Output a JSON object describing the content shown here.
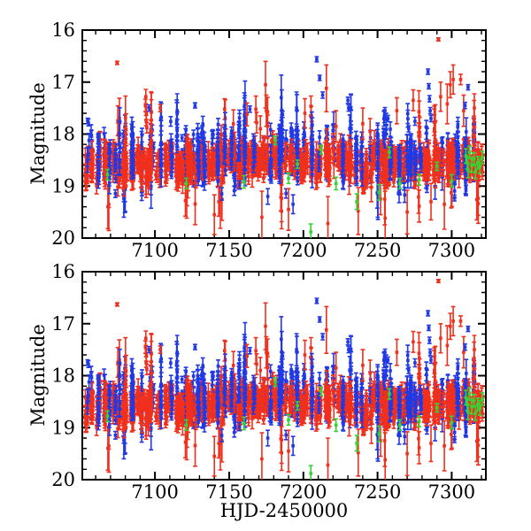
{
  "chart_data": {
    "type": "scatter",
    "title": "",
    "x_label": "HJD-2450000",
    "y_label": "Magnitude",
    "x_lim": [
      7051,
      7323
    ],
    "y_lim": [
      16,
      20
    ],
    "y_axis_direction": "inverted-magnitude",
    "x_major_ticks": [
      7100,
      7150,
      7200,
      7250,
      7300
    ],
    "x_minor_step": 10,
    "y_major_ticks": [
      16,
      17,
      18,
      19,
      20
    ],
    "y_minor_step": 0.2,
    "grid": "off",
    "legend": "none",
    "panels": [
      {
        "id": "top",
        "seed": 101,
        "show_x_tick_labels": true,
        "show_x_label": false
      },
      {
        "id": "bottom",
        "seed": 101,
        "show_x_tick_labels": true,
        "show_x_label": true
      }
    ],
    "series": [
      {
        "name": "red",
        "color": "#f0301d",
        "marker": "square",
        "gen": {
          "x_start": 7052,
          "x_end": 7321,
          "base": 18.53,
          "wobble_amp": 0.07,
          "wobble_period": 26,
          "cluster_sd": 0.09,
          "point_sd": 0.14,
          "n_min": 4,
          "n_max": 24,
          "gap_min": 0.9,
          "gap_range": 2.8,
          "width_min": 0.6,
          "width_range": 1.4,
          "err_min": 0.05,
          "err_range": 0.13,
          "flare_p": 0.08,
          "flare_amp": 0.85,
          "faint_p": 0.07,
          "faint_amp": 0.55
        }
      },
      {
        "name": "blue",
        "color": "#2139e4",
        "marker": "square",
        "gen": {
          "x_start": 7054,
          "x_end": 7318,
          "base": 18.42,
          "wobble_amp": 0.05,
          "wobble_period": 34,
          "cluster_sd": 0.1,
          "point_sd": 0.26,
          "n_min": 4,
          "n_max": 26,
          "gap_min": 1.2,
          "gap_range": 5.5,
          "width_min": 0.4,
          "width_range": 0.9,
          "err_min": 0.05,
          "err_range": 0.1,
          "flare_p": 0.12,
          "flare_amp": 0.75,
          "faint_p": 0.05,
          "faint_amp": 0.4
        }
      },
      {
        "name": "green",
        "color": "#35d435",
        "marker": "square",
        "points": [
          [
            7068,
            18.78,
            0.1
          ],
          [
            7121,
            18.95,
            0.1
          ],
          [
            7160,
            18.92,
            0.12
          ],
          [
            7181,
            18.12,
            0.08
          ],
          [
            7190,
            18.85,
            0.1
          ],
          [
            7196,
            18.58,
            0.08
          ],
          [
            7212,
            18.3,
            0.08
          ],
          [
            7222,
            18.95,
            0.12
          ],
          [
            7236,
            19.3,
            0.15
          ],
          [
            7251,
            19.12,
            0.15
          ],
          [
            7258,
            18.35,
            0.1
          ],
          [
            7265,
            18.95,
            0.1
          ],
          [
            7278,
            18.88,
            0.1
          ],
          [
            7290,
            18.62,
            0.08
          ],
          [
            7300,
            18.9,
            0.12
          ],
          [
            7309.5,
            18.42,
            0.14
          ],
          [
            7310.5,
            18.55,
            0.12
          ],
          [
            7311,
            18.7,
            0.14
          ],
          [
            7312,
            18.35,
            0.12
          ],
          [
            7313.5,
            18.6,
            0.14
          ],
          [
            7315,
            18.48,
            0.12
          ],
          [
            7316,
            18.72,
            0.14
          ],
          [
            7317.5,
            18.55,
            0.12
          ],
          [
            7319,
            18.62,
            0.14
          ],
          [
            7320.5,
            18.45,
            0.12
          ]
        ]
      }
    ],
    "outliers": {
      "red": [
        [
          7074.5,
          16.63,
          0.03
        ],
        [
          7291,
          16.18,
          0.03
        ],
        [
          7093.8,
          17.28,
          0.14
        ],
        [
          7093.5,
          17.45,
          0.12
        ],
        [
          7094.2,
          17.6,
          0.12
        ],
        [
          7094.0,
          17.74,
          0.1
        ],
        [
          7094.5,
          17.88,
          0.1
        ],
        [
          7103.5,
          17.5,
          0.07
        ],
        [
          7162,
          17.62,
          0.22
        ],
        [
          7168,
          17.52,
          0.25
        ],
        [
          7168.5,
          17.78,
          0.2
        ],
        [
          7174.5,
          17.05,
          0.45
        ],
        [
          7175,
          17.55,
          0.3
        ],
        [
          7171,
          17.9,
          0.25
        ],
        [
          7201,
          17.6,
          0.28
        ],
        [
          7215.5,
          17.12,
          0.45
        ],
        [
          7222,
          17.85,
          0.3
        ],
        [
          7240,
          17.8,
          0.3
        ],
        [
          7245,
          17.95,
          0.25
        ],
        [
          7263,
          17.55,
          0.25
        ],
        [
          7274,
          17.35,
          0.2
        ],
        [
          7292.5,
          17.28,
          0.28
        ],
        [
          7297,
          17.42,
          0.38
        ],
        [
          7299,
          17.05,
          0.25
        ],
        [
          7301,
          16.95,
          0.28
        ],
        [
          7306,
          16.95,
          0.1
        ],
        [
          7308,
          17.55,
          0.3
        ],
        [
          7120.5,
          19.28,
          0.3
        ],
        [
          7140,
          19.55,
          0.38
        ],
        [
          7143,
          19.3,
          0.28
        ],
        [
          7172,
          19.6,
          0.5
        ],
        [
          7190,
          19.45,
          0.4
        ],
        [
          7216.5,
          19.72,
          0.52
        ],
        [
          7237,
          19.48,
          0.45
        ],
        [
          7252,
          19.25,
          0.3
        ],
        [
          7270,
          19.5,
          0.42
        ],
        [
          7286,
          19.3,
          0.35
        ],
        [
          7295,
          19.35,
          0.48
        ]
      ],
      "blue": [
        [
          7096,
          17.5,
          0.06
        ],
        [
          7127,
          17.45,
          0.05
        ],
        [
          7164,
          17.52,
          0.06
        ],
        [
          7186,
          17.62,
          0.06
        ],
        [
          7209,
          16.56,
          0.05
        ],
        [
          7211,
          16.92,
          0.05
        ],
        [
          7213,
          17.25,
          0.06
        ],
        [
          7230,
          17.35,
          0.06
        ],
        [
          7230.5,
          17.5,
          0.06
        ],
        [
          7255,
          17.55,
          0.06
        ],
        [
          7257,
          17.7,
          0.06
        ],
        [
          7271,
          17.9,
          0.06
        ],
        [
          7284,
          16.8,
          0.05
        ],
        [
          7284.5,
          17.08,
          0.05
        ],
        [
          7285,
          17.32,
          0.06
        ],
        [
          7285.5,
          17.55,
          0.06
        ],
        [
          7286,
          17.7,
          0.06
        ],
        [
          7311,
          17.1,
          0.05
        ],
        [
          7309,
          17.45,
          0.06
        ],
        [
          7145,
          19.15,
          0.12
        ],
        [
          7176,
          19.2,
          0.15
        ],
        [
          7193,
          19.35,
          0.18
        ]
      ],
      "green": [
        [
          7205,
          19.88,
          0.15
        ]
      ]
    }
  }
}
